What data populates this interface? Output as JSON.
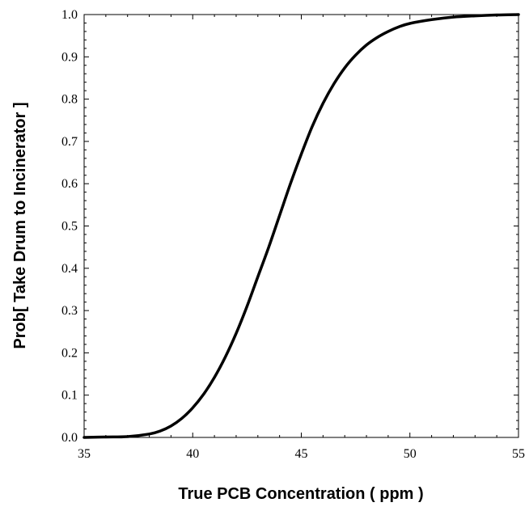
{
  "chart_data": {
    "type": "line",
    "title": "",
    "xlabel": "True PCB Concentration ( ppm )",
    "ylabel": "Prob[ Take Drum to Incinerator ]",
    "xlim": [
      35,
      55
    ],
    "ylim": [
      0.0,
      1.0
    ],
    "x_ticks": [
      "35",
      "40",
      "45",
      "50",
      "55"
    ],
    "y_ticks": [
      "0.0",
      "0.1",
      "0.2",
      "0.3",
      "0.4",
      "0.5",
      "0.6",
      "0.7",
      "0.8",
      "0.9",
      "1.0"
    ],
    "grid": false,
    "legend": "none",
    "series": [
      {
        "color": "#000000",
        "x": [
          35,
          36,
          37,
          38,
          38.5,
          39,
          39.5,
          40,
          40.5,
          41,
          41.5,
          42,
          42.5,
          43,
          43.5,
          44,
          44.5,
          45,
          45.5,
          46,
          46.5,
          47,
          47.5,
          48,
          48.5,
          49,
          49.5,
          50,
          51,
          52,
          53,
          54,
          55
        ],
        "y": [
          0.0,
          0.001,
          0.002,
          0.008,
          0.015,
          0.027,
          0.045,
          0.07,
          0.102,
          0.142,
          0.19,
          0.246,
          0.31,
          0.38,
          0.45,
          0.525,
          0.6,
          0.67,
          0.735,
          0.79,
          0.836,
          0.874,
          0.904,
          0.928,
          0.946,
          0.96,
          0.971,
          0.979,
          0.988,
          0.994,
          0.997,
          0.999,
          1.0
        ]
      }
    ]
  }
}
